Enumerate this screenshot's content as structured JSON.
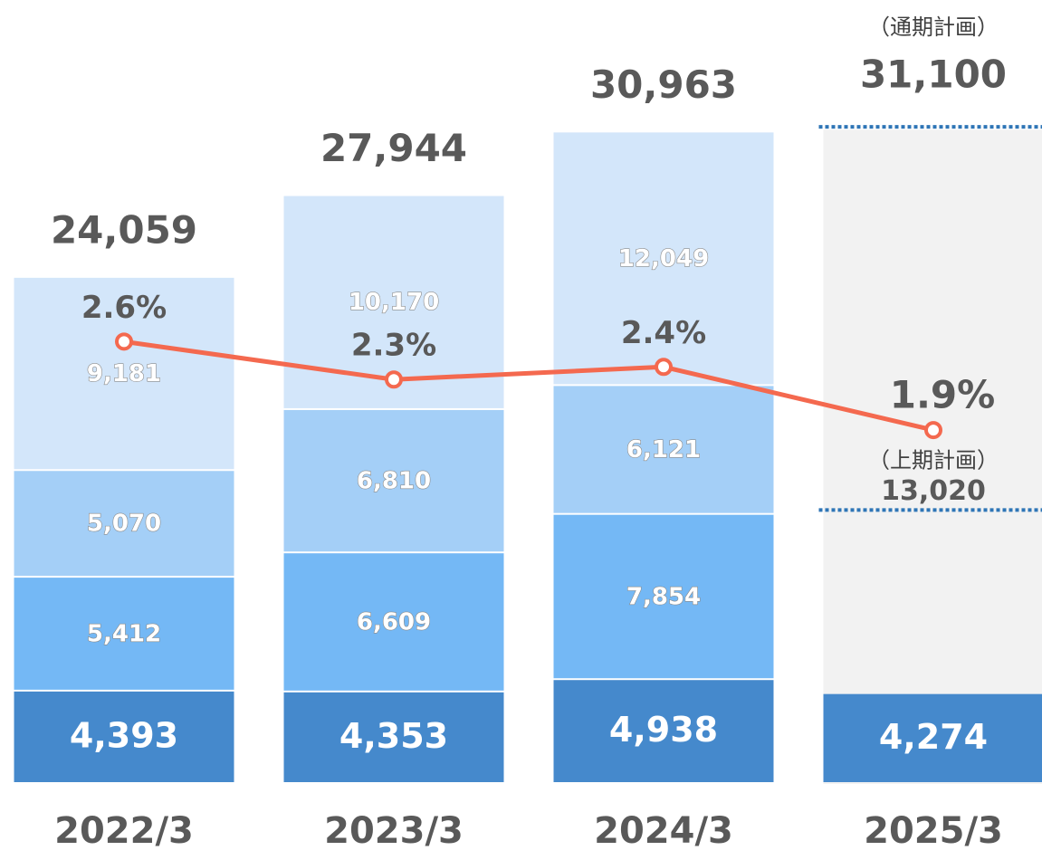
{
  "chart_data": {
    "type": "bar",
    "stacked": true,
    "categories": [
      "2022/3",
      "2023/3",
      "2024/3",
      "2025/3"
    ],
    "ylim": [
      0,
      37000
    ],
    "series": [
      {
        "color": "#4589cc",
        "values": [
          4393,
          4353,
          4938,
          4274
        ],
        "value_labels": [
          "4,393",
          "4,353",
          "4,938",
          "4,274"
        ]
      },
      {
        "color": "#74b8f5",
        "values": [
          5412,
          6609,
          7854,
          null
        ],
        "value_labels": [
          "5,412",
          "6,609",
          "7,854",
          null
        ]
      },
      {
        "color": "#a4cff7",
        "values": [
          5070,
          6810,
          6121,
          null
        ],
        "value_labels": [
          "5,070",
          "6,810",
          "6,121",
          null
        ]
      },
      {
        "color": "#d3e6fa",
        "values": [
          9181,
          10170,
          12049,
          null
        ],
        "value_labels": [
          "9,181",
          "10,170",
          "12,049",
          null
        ]
      }
    ],
    "totals": {
      "values": [
        24059,
        27944,
        30963,
        31100
      ],
      "value_labels": [
        "24,059",
        "27,944",
        "30,963",
        "31,100"
      ]
    },
    "line": {
      "type": "line",
      "axis": "y2",
      "color": "#f4694f",
      "values": [
        2.6,
        2.3,
        2.4,
        1.9
      ],
      "value_labels": [
        "2.6%",
        "2.3%",
        "2.4%",
        "1.9%"
      ]
    },
    "y2lim": [
      -0.9,
      5.26
    ],
    "plan": {
      "color": "#f2f2f2",
      "line_color": "#2e75b6",
      "full_label": "（通期計画）",
      "half_label": "（上期計画）",
      "half_value": 13020,
      "half_value_label": "13,020"
    }
  }
}
